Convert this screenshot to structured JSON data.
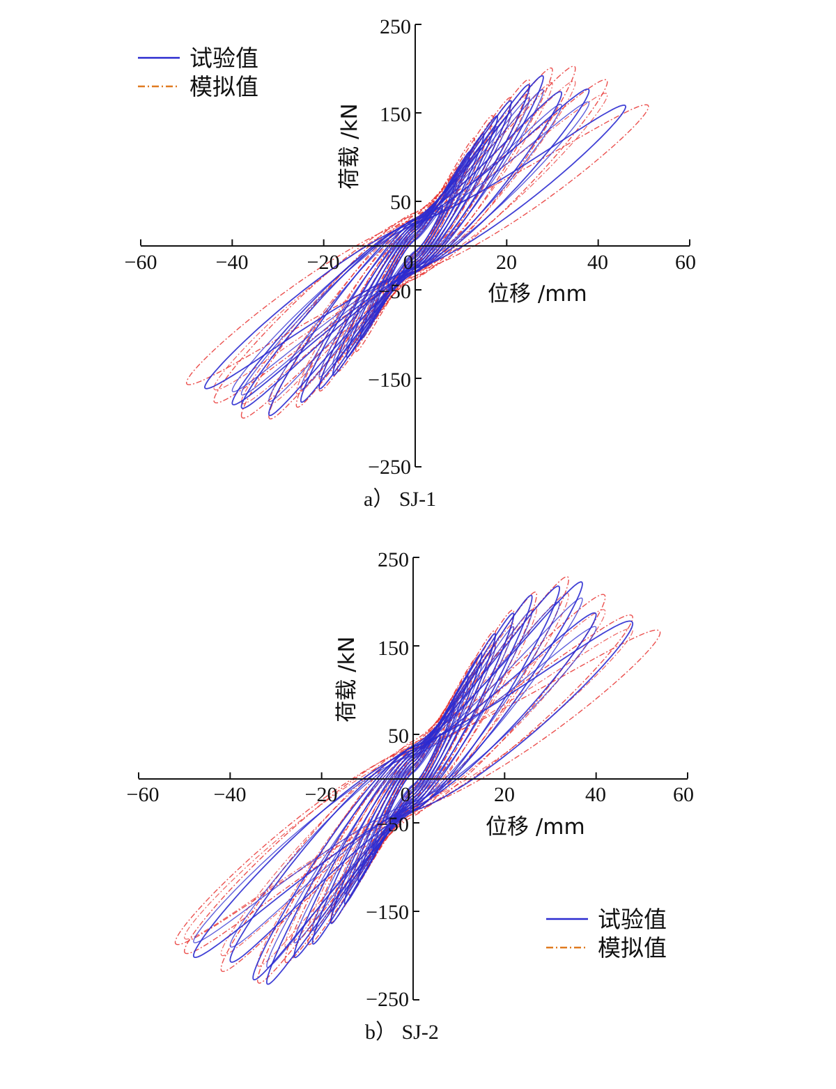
{
  "chart_data": [
    {
      "type": "line",
      "caption": "a）  SJ-1",
      "xlabel": "位移 /mm",
      "ylabel": "荷载 /kN",
      "xlim": [
        -60,
        60
      ],
      "ylim": [
        -250,
        250
      ],
      "x_ticks": [
        "−60",
        "−40",
        "−20",
        "0",
        "20",
        "40",
        "60"
      ],
      "y_ticks": [
        "250",
        "150",
        "50",
        "−50",
        "−150",
        "−250"
      ],
      "legend": {
        "position": "top-left",
        "entries": [
          "试验值",
          "模拟值"
        ]
      },
      "colors": {
        "test": "#2b2bd0",
        "sim": "#e8302e",
        "legend_sim": "#e07a20"
      },
      "series": [
        {
          "name": "试验值",
          "loops": [
            {
              "dpos": 6,
              "fpos": 45,
              "dneg": -6,
              "fneg": -45
            },
            {
              "dpos": 9,
              "fpos": 75,
              "dneg": -9,
              "fneg": -75
            },
            {
              "dpos": 12,
              "fpos": 105,
              "dneg": -12,
              "fneg": -105
            },
            {
              "dpos": 15,
              "fpos": 125,
              "dneg": -15,
              "fneg": -125
            },
            {
              "dpos": 18,
              "fpos": 145,
              "dneg": -18,
              "fneg": -145
            },
            {
              "dpos": 21,
              "fpos": 162,
              "dneg": -21,
              "fneg": -160
            },
            {
              "dpos": 25,
              "fpos": 180,
              "dneg": -25,
              "fneg": -175
            },
            {
              "dpos": 28,
              "fpos": 190,
              "dneg": -32,
              "fneg": -190
            },
            {
              "dpos": 32,
              "fpos": 172,
              "dneg": -38,
              "fneg": -182
            },
            {
              "dpos": 38,
              "fpos": 175,
              "dneg": -40,
              "fneg": -178
            },
            {
              "dpos": 46,
              "fpos": 157,
              "dneg": -46,
              "fneg": -160
            }
          ]
        },
        {
          "name": "模拟值",
          "loops": [
            {
              "dpos": 7,
              "fpos": 55,
              "dneg": -7,
              "fneg": -55
            },
            {
              "dpos": 10,
              "fpos": 90,
              "dneg": -10,
              "fneg": -88
            },
            {
              "dpos": 13,
              "fpos": 120,
              "dneg": -13,
              "fneg": -118
            },
            {
              "dpos": 17,
              "fpos": 145,
              "dneg": -17,
              "fneg": -140
            },
            {
              "dpos": 21,
              "fpos": 165,
              "dneg": -21,
              "fneg": -162
            },
            {
              "dpos": 25,
              "fpos": 185,
              "dneg": -26,
              "fneg": -180
            },
            {
              "dpos": 30,
              "fpos": 198,
              "dneg": -32,
              "fneg": -193
            },
            {
              "dpos": 35,
              "fpos": 200,
              "dneg": -38,
              "fneg": -192
            },
            {
              "dpos": 42,
              "fpos": 185,
              "dneg": -44,
              "fneg": -175
            },
            {
              "dpos": 51,
              "fpos": 157,
              "dneg": -50,
              "fneg": -155
            }
          ]
        }
      ]
    },
    {
      "type": "line",
      "caption": "b）  SJ-2",
      "xlabel": "位移 /mm",
      "ylabel": "荷载 /kN",
      "xlim": [
        -60,
        60
      ],
      "ylim": [
        -250,
        250
      ],
      "x_ticks": [
        "−60",
        "−40",
        "−20",
        "0",
        "20",
        "40",
        "60"
      ],
      "y_ticks": [
        "250",
        "150",
        "50",
        "−50",
        "−150",
        "−250"
      ],
      "legend": {
        "position": "bottom-right",
        "entries": [
          "试验值",
          "模拟值"
        ]
      },
      "colors": {
        "test": "#2b2bd0",
        "sim": "#e8302e",
        "legend_sim": "#e07a20"
      },
      "series": [
        {
          "name": "试验值",
          "loops": [
            {
              "dpos": 6,
              "fpos": 50,
              "dneg": -6,
              "fneg": -50
            },
            {
              "dpos": 9,
              "fpos": 85,
              "dneg": -9,
              "fneg": -85
            },
            {
              "dpos": 12,
              "fpos": 115,
              "dneg": -12,
              "fneg": -115
            },
            {
              "dpos": 15,
              "fpos": 140,
              "dneg": -15,
              "fneg": -140
            },
            {
              "dpos": 18,
              "fpos": 162,
              "dneg": -18,
              "fneg": -162
            },
            {
              "dpos": 22,
              "fpos": 185,
              "dneg": -22,
              "fneg": -185
            },
            {
              "dpos": 26,
              "fpos": 205,
              "dneg": -26,
              "fneg": -200
            },
            {
              "dpos": 32,
              "fpos": 215,
              "dneg": -32,
              "fneg": -230
            },
            {
              "dpos": 37,
              "fpos": 220,
              "dneg": -40,
              "fneg": -205
            },
            {
              "dpos": 40,
              "fpos": 185,
              "dneg": -48,
              "fneg": -200
            },
            {
              "dpos": 48,
              "fpos": 175,
              "dneg": -35,
              "fneg": -225
            }
          ]
        },
        {
          "name": "模拟值",
          "loops": [
            {
              "dpos": 7,
              "fpos": 62,
              "dneg": -7,
              "fneg": -62
            },
            {
              "dpos": 10,
              "fpos": 100,
              "dneg": -10,
              "fneg": -98
            },
            {
              "dpos": 14,
              "fpos": 135,
              "dneg": -14,
              "fneg": -130
            },
            {
              "dpos": 18,
              "fpos": 165,
              "dneg": -18,
              "fneg": -160
            },
            {
              "dpos": 22,
              "fpos": 188,
              "dneg": -23,
              "fneg": -185
            },
            {
              "dpos": 27,
              "fpos": 208,
              "dneg": -28,
              "fneg": -205
            },
            {
              "dpos": 34,
              "fpos": 225,
              "dneg": -34,
              "fneg": -228
            },
            {
              "dpos": 42,
              "fpos": 205,
              "dneg": -42,
              "fneg": -215
            },
            {
              "dpos": 48,
              "fpos": 182,
              "dneg": -50,
              "fneg": -195
            },
            {
              "dpos": 54,
              "fpos": 165,
              "dneg": -52,
              "fneg": -185
            }
          ]
        }
      ]
    }
  ]
}
